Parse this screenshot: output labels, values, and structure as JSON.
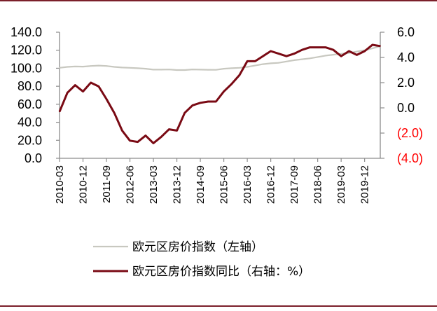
{
  "chart_data": {
    "type": "line",
    "title": "",
    "x_tick_labels": [
      "2010-03",
      "2010-12",
      "2011-09",
      "2012-06",
      "2013-03",
      "2013-12",
      "2014-09",
      "2015-06",
      "2016-03",
      "2016-12",
      "2017-09",
      "2018-06",
      "2019-03",
      "2019-12"
    ],
    "x_range": [
      "2010-03",
      "2020-06"
    ],
    "y_left": {
      "range": [
        0,
        140
      ],
      "ticks": [
        "0.0",
        "20.0",
        "40.0",
        "60.0",
        "80.0",
        "100.0",
        "120.0",
        "140.0"
      ]
    },
    "y_right": {
      "range": [
        -4,
        6
      ],
      "ticks": [
        {
          "label": "6.0",
          "value": 6,
          "color": "#000000"
        },
        {
          "label": "4.0",
          "value": 4,
          "color": "#000000"
        },
        {
          "label": "2.0",
          "value": 2,
          "color": "#000000"
        },
        {
          "label": "0.0",
          "value": 0,
          "color": "#000000"
        },
        {
          "label": "(2.0)",
          "value": -2,
          "color": "#ff0000"
        },
        {
          "label": "(4.0)",
          "value": -4,
          "color": "#ff0000"
        }
      ]
    },
    "grid": false,
    "legend_position": "bottom",
    "series": [
      {
        "name": "欧元区房价指数（左轴）",
        "axis": "left",
        "color": "#c8c8c0",
        "x": [
          "2010-03",
          "2010-06",
          "2010-09",
          "2010-12",
          "2011-03",
          "2011-06",
          "2011-09",
          "2011-12",
          "2012-03",
          "2012-06",
          "2012-09",
          "2012-12",
          "2013-03",
          "2013-06",
          "2013-09",
          "2013-12",
          "2014-03",
          "2014-06",
          "2014-09",
          "2014-12",
          "2015-03",
          "2015-06",
          "2015-09",
          "2015-12",
          "2016-03",
          "2016-06",
          "2016-09",
          "2016-12",
          "2017-03",
          "2017-06",
          "2017-09",
          "2017-12",
          "2018-03",
          "2018-06",
          "2018-09",
          "2018-12",
          "2019-03",
          "2019-06",
          "2019-09",
          "2019-12",
          "2020-03",
          "2020-06"
        ],
        "values": [
          100.5,
          101.5,
          102.0,
          101.8,
          102.5,
          103.0,
          102.5,
          101.5,
          100.8,
          100.5,
          100.0,
          99.5,
          98.5,
          98.5,
          98.6,
          98.0,
          98.0,
          98.7,
          98.5,
          98.3,
          98.2,
          99.5,
          100.0,
          100.5,
          101.5,
          103.0,
          104.5,
          105.5,
          106.0,
          107.5,
          109.0,
          110.0,
          111.0,
          112.5,
          114.0,
          115.0,
          116.0,
          117.0,
          118.5,
          120.0,
          122.0,
          124.5
        ]
      },
      {
        "name": "欧元区房价指数同比（右轴：%）",
        "axis": "right",
        "color": "#7a0a14",
        "x": [
          "2010-03",
          "2010-06",
          "2010-09",
          "2010-12",
          "2011-03",
          "2011-06",
          "2011-09",
          "2011-12",
          "2012-03",
          "2012-06",
          "2012-09",
          "2012-12",
          "2013-03",
          "2013-06",
          "2013-09",
          "2013-12",
          "2014-03",
          "2014-06",
          "2014-09",
          "2014-12",
          "2015-03",
          "2015-06",
          "2015-09",
          "2015-12",
          "2016-03",
          "2016-06",
          "2016-09",
          "2016-12",
          "2017-03",
          "2017-06",
          "2017-09",
          "2017-12",
          "2018-03",
          "2018-06",
          "2018-09",
          "2018-12",
          "2019-03",
          "2019-06",
          "2019-09",
          "2019-12",
          "2020-03",
          "2020-06"
        ],
        "values": [
          -0.3,
          1.2,
          1.8,
          1.3,
          2.0,
          1.7,
          0.7,
          -0.4,
          -1.8,
          -2.6,
          -2.7,
          -2.2,
          -2.8,
          -2.3,
          -1.7,
          -1.8,
          -0.4,
          0.2,
          0.4,
          0.5,
          0.5,
          1.3,
          1.9,
          2.6,
          3.7,
          3.7,
          4.1,
          4.5,
          4.3,
          4.1,
          4.3,
          4.6,
          4.8,
          4.8,
          4.8,
          4.6,
          4.1,
          4.5,
          4.2,
          4.5,
          5.0,
          4.9
        ]
      }
    ]
  }
}
